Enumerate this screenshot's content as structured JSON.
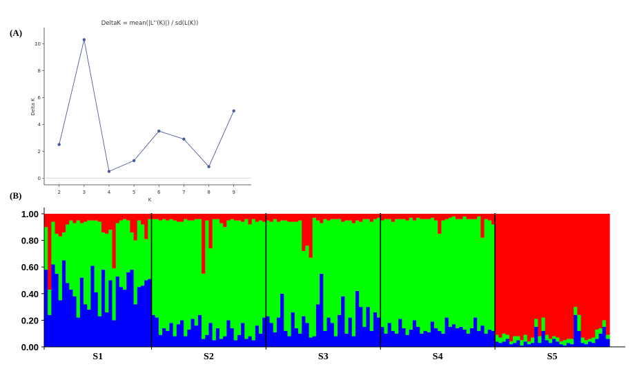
{
  "panel_a_label": "(A)",
  "panel_b_label": "(B)",
  "chart_data": [
    {
      "type": "line",
      "title": "DeltaK = mean(|L''(K)|) / sd(L(K))",
      "xlabel": "K",
      "ylabel": "Delta K",
      "x": [
        2,
        3,
        4,
        5,
        6,
        7,
        8,
        9
      ],
      "y": [
        2.5,
        10.3,
        0.5,
        1.3,
        3.5,
        2.9,
        0.85,
        5.0
      ],
      "xlim": [
        1.4,
        9.7
      ],
      "ylim": [
        -0.5,
        11.2
      ],
      "xticks": [
        "2",
        "3",
        "4",
        "5",
        "6",
        "7",
        "8",
        "9"
      ],
      "yticks": [
        "0",
        "2",
        "4",
        "6",
        "8",
        "10"
      ],
      "color": "#4c5a9a",
      "grid": false
    },
    {
      "type": "bar",
      "stacked": true,
      "ylim": [
        0,
        1
      ],
      "yticks": [
        "0.00",
        "0.20",
        "0.40",
        "0.60",
        "0.80",
        "1.00"
      ],
      "colors": {
        "blue": "#0000ff",
        "green": "#00ff00",
        "red": "#ff0000"
      },
      "groups": [
        {
          "name": "S1",
          "n": 30
        },
        {
          "name": "S2",
          "n": 32
        },
        {
          "name": "S3",
          "n": 32
        },
        {
          "name": "S4",
          "n": 32
        },
        {
          "name": "S5",
          "n": 32
        }
      ],
      "series": [
        {
          "name": "blue",
          "values": [
            0.58,
            0.24,
            0.62,
            0.55,
            0.35,
            0.65,
            0.48,
            0.43,
            0.38,
            0.22,
            0.52,
            0.32,
            0.28,
            0.61,
            0.41,
            0.23,
            0.58,
            0.26,
            0.5,
            0.2,
            0.53,
            0.45,
            0.43,
            0.56,
            0.58,
            0.32,
            0.45,
            0.46,
            0.5,
            0.51,
            0.24,
            0.22,
            0.09,
            0.14,
            0.12,
            0.18,
            0.08,
            0.17,
            0.2,
            0.08,
            0.13,
            0.21,
            0.16,
            0.24,
            0.06,
            0.09,
            0.18,
            0.05,
            0.14,
            0.06,
            0.08,
            0.2,
            0.14,
            0.05,
            0.09,
            0.18,
            0.06,
            0.08,
            0.05,
            0.16,
            0.1,
            0.22,
            0.23,
            0.18,
            0.11,
            0.22,
            0.4,
            0.12,
            0.08,
            0.26,
            0.14,
            0.1,
            0.23,
            0.18,
            0.07,
            0.08,
            0.32,
            0.55,
            0.12,
            0.22,
            0.18,
            0.08,
            0.24,
            0.38,
            0.1,
            0.22,
            0.08,
            0.42,
            0.3,
            0.15,
            0.3,
            0.12,
            0.26,
            0.22,
            0.15,
            0.1,
            0.18,
            0.12,
            0.1,
            0.21,
            0.14,
            0.09,
            0.13,
            0.2,
            0.15,
            0.1,
            0.12,
            0.11,
            0.19,
            0.14,
            0.12,
            0.1,
            0.22,
            0.15,
            0.17,
            0.14,
            0.15,
            0.13,
            0.1,
            0.14,
            0.22,
            0.12,
            0.16,
            0.1,
            0.13,
            0.12,
            0.04,
            0.03,
            0.04,
            0.06,
            0.02,
            0.03,
            0.05,
            0.01,
            0.04,
            0.02,
            0.03,
            0.15,
            0.03,
            0.12,
            0.05,
            0.03,
            0.06,
            0.04,
            0.02,
            0.01,
            0.03,
            0.02,
            0.24,
            0.12,
            0.03,
            0.02,
            0.04,
            0.03,
            0.06,
            0.1,
            0.15,
            0.06
          ]
        },
        {
          "name": "green",
          "values": [
            0.32,
            0.19,
            0.32,
            0.3,
            0.48,
            0.21,
            0.44,
            0.52,
            0.55,
            0.73,
            0.41,
            0.62,
            0.67,
            0.34,
            0.54,
            0.71,
            0.28,
            0.59,
            0.38,
            0.39,
            0.4,
            0.5,
            0.53,
            0.39,
            0.28,
            0.48,
            0.5,
            0.46,
            0.31,
            0.45,
            0.72,
            0.74,
            0.86,
            0.82,
            0.83,
            0.78,
            0.87,
            0.77,
            0.74,
            0.88,
            0.82,
            0.74,
            0.8,
            0.72,
            0.49,
            0.86,
            0.56,
            0.91,
            0.82,
            0.87,
            0.82,
            0.75,
            0.82,
            0.9,
            0.86,
            0.76,
            0.9,
            0.84,
            0.91,
            0.78,
            0.85,
            0.72,
            0.72,
            0.76,
            0.85,
            0.72,
            0.55,
            0.83,
            0.86,
            0.68,
            0.8,
            0.85,
            0.49,
            0.58,
            0.6,
            0.89,
            0.63,
            0.38,
            0.84,
            0.73,
            0.78,
            0.88,
            0.72,
            0.56,
            0.85,
            0.73,
            0.85,
            0.53,
            0.64,
            0.81,
            0.66,
            0.82,
            0.7,
            0.75,
            0.8,
            0.86,
            0.78,
            0.82,
            0.86,
            0.75,
            0.82,
            0.86,
            0.84,
            0.75,
            0.82,
            0.86,
            0.84,
            0.85,
            0.78,
            0.81,
            0.73,
            0.85,
            0.74,
            0.82,
            0.81,
            0.82,
            0.81,
            0.85,
            0.86,
            0.82,
            0.74,
            0.86,
            0.66,
            0.86,
            0.82,
            0.8,
            0.05,
            0.04,
            0.06,
            0.03,
            0.02,
            0.05,
            0.03,
            0.04,
            0.05,
            0.02,
            0.04,
            0.06,
            0.05,
            0.1,
            0.04,
            0.03,
            0.02,
            0.03,
            0.02,
            0.04,
            0.03,
            0.04,
            0.06,
            0.12,
            0.04,
            0.03,
            0.02,
            0.04,
            0.07,
            0.04,
            0.05,
            0.03
          ]
        },
        {
          "name": "red",
          "values": [
            0.1,
            0.57,
            0.06,
            0.15,
            0.17,
            0.14,
            0.08,
            0.05,
            0.07,
            0.05,
            0.07,
            0.06,
            0.05,
            0.05,
            0.05,
            0.06,
            0.14,
            0.15,
            0.12,
            0.41,
            0.07,
            0.05,
            0.04,
            0.05,
            0.14,
            0.2,
            0.05,
            0.08,
            0.19,
            0.04,
            0.04,
            0.04,
            0.05,
            0.04,
            0.05,
            0.04,
            0.05,
            0.06,
            0.06,
            0.04,
            0.05,
            0.05,
            0.04,
            0.04,
            0.45,
            0.05,
            0.26,
            0.04,
            0.04,
            0.07,
            0.1,
            0.05,
            0.04,
            0.05,
            0.05,
            0.06,
            0.04,
            0.08,
            0.04,
            0.06,
            0.05,
            0.06,
            0.05,
            0.06,
            0.04,
            0.06,
            0.05,
            0.05,
            0.06,
            0.06,
            0.06,
            0.05,
            0.28,
            0.24,
            0.33,
            0.03,
            0.05,
            0.07,
            0.04,
            0.05,
            0.04,
            0.04,
            0.04,
            0.06,
            0.05,
            0.05,
            0.07,
            0.05,
            0.06,
            0.04,
            0.04,
            0.06,
            0.04,
            0.03,
            0.05,
            0.04,
            0.04,
            0.06,
            0.04,
            0.04,
            0.04,
            0.05,
            0.03,
            0.05,
            0.03,
            0.04,
            0.04,
            0.04,
            0.03,
            0.05,
            0.15,
            0.05,
            0.04,
            0.03,
            0.02,
            0.04,
            0.04,
            0.02,
            0.04,
            0.04,
            0.04,
            0.02,
            0.18,
            0.04,
            0.05,
            0.08,
            0.91,
            0.93,
            0.9,
            0.91,
            0.96,
            0.92,
            0.92,
            0.95,
            0.91,
            0.96,
            0.93,
            0.79,
            0.92,
            0.78,
            0.91,
            0.94,
            0.92,
            0.93,
            0.96,
            0.95,
            0.94,
            0.94,
            0.7,
            0.76,
            0.93,
            0.95,
            0.94,
            0.93,
            0.87,
            0.86,
            0.8,
            0.91
          ]
        }
      ]
    }
  ]
}
